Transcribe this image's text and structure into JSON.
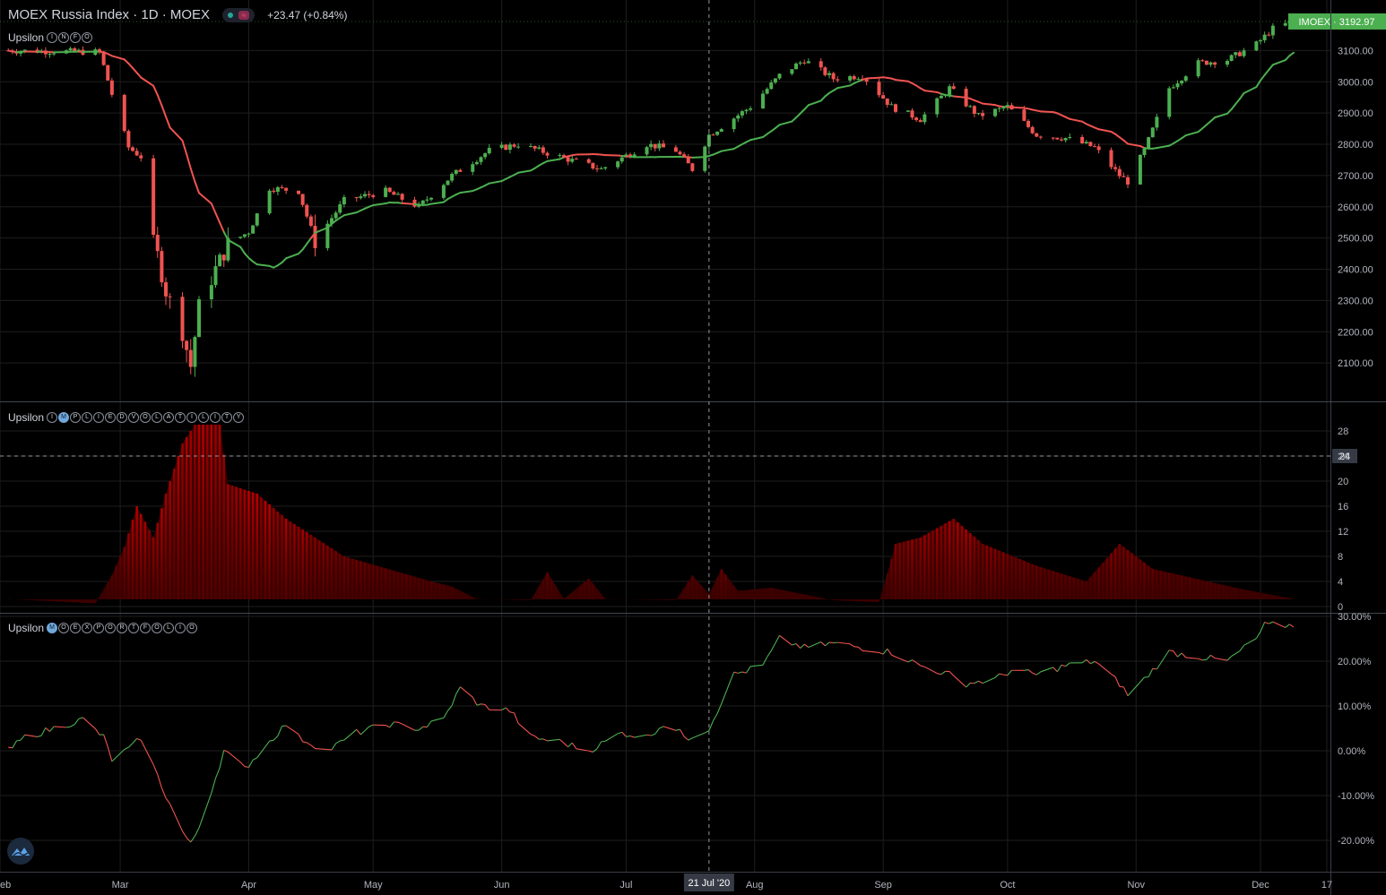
{
  "header": {
    "title": "MOEX Russia Index · 1D · MOEX",
    "change": "+23.47 (+0.84%)",
    "price_label": "IMOEX · 3192.97"
  },
  "indicators": [
    {
      "name": "Upsilon",
      "letters": [
        "I",
        "N",
        "F",
        "O"
      ],
      "highlight": []
    },
    {
      "name": "Upsilon",
      "letters": [
        "I",
        "M",
        "P",
        "L",
        "I",
        "E",
        "D",
        "V",
        "O",
        "L",
        "A",
        "T",
        "I",
        "L",
        "I",
        "T",
        "Y"
      ],
      "highlight": [
        1
      ]
    },
    {
      "name": "Upsilon",
      "letters": [
        "M",
        "O",
        "E",
        "X",
        "P",
        "O",
        "R",
        "T",
        "F",
        "O",
        "L",
        "I",
        "O"
      ],
      "highlight": [
        0
      ]
    }
  ],
  "crosshair": {
    "date_label": "21 Jul '20",
    "vol_value_label": "24"
  },
  "x_axis": {
    "labels": [
      "eb",
      "Mar",
      "Apr",
      "May",
      "Jun",
      "Jul",
      "Aug",
      "Sep",
      "Oct",
      "Nov",
      "Dec",
      "17"
    ]
  },
  "colors": {
    "up": "#4caf50",
    "down": "#ef5350",
    "bg": "#000000",
    "grid": "#1e1e1e",
    "price_label_bg": "#4caf50",
    "vol": "#c40000"
  },
  "chart_data": [
    {
      "type": "candlestick",
      "title": "MOEX Russia Index",
      "y_ticks": [
        "2100.00",
        "2200.00",
        "2300.00",
        "2400.00",
        "2500.00",
        "2600.00",
        "2700.00",
        "2800.00",
        "2900.00",
        "3000.00",
        "3100.00"
      ],
      "ylim": [
        2000,
        3190
      ],
      "overlay": "moving average (red below-trend, green above-trend)",
      "anchors": [
        [
          "2020-02-03",
          3100
        ],
        [
          "2020-02-25",
          3095
        ],
        [
          "2020-02-28",
          2960
        ],
        [
          "2020-03-03",
          2790
        ],
        [
          "2020-03-06",
          2760
        ],
        [
          "2020-03-09",
          2500
        ],
        [
          "2020-03-12",
          2330
        ],
        [
          "2020-03-16",
          2200
        ],
        [
          "2020-03-18",
          2090
        ],
        [
          "2020-03-20",
          2280
        ],
        [
          "2020-03-24",
          2400
        ],
        [
          "2020-03-27",
          2480
        ],
        [
          "2020-04-01",
          2520
        ],
        [
          "2020-04-06",
          2660
        ],
        [
          "2020-04-13",
          2650
        ],
        [
          "2020-04-17",
          2490
        ],
        [
          "2020-04-24",
          2620
        ],
        [
          "2020-05-04",
          2650
        ],
        [
          "2020-05-12",
          2600
        ],
        [
          "2020-05-20",
          2700
        ],
        [
          "2020-05-29",
          2780
        ],
        [
          "2020-06-05",
          2800
        ],
        [
          "2020-06-15",
          2760
        ],
        [
          "2020-06-25",
          2720
        ],
        [
          "2020-07-06",
          2800
        ],
        [
          "2020-07-13",
          2780
        ],
        [
          "2020-07-17",
          2720
        ],
        [
          "2020-07-21",
          2830
        ],
        [
          "2020-07-31",
          2920
        ],
        [
          "2020-08-07",
          3020
        ],
        [
          "2020-08-13",
          3070
        ],
        [
          "2020-08-20",
          3010
        ],
        [
          "2020-08-27",
          3020
        ],
        [
          "2020-09-03",
          2920
        ],
        [
          "2020-09-10",
          2880
        ],
        [
          "2020-09-17",
          2980
        ],
        [
          "2020-09-24",
          2890
        ],
        [
          "2020-10-01",
          2920
        ],
        [
          "2020-10-08",
          2830
        ],
        [
          "2020-10-15",
          2820
        ],
        [
          "2020-10-22",
          2790
        ],
        [
          "2020-10-28",
          2700
        ],
        [
          "2020-10-30",
          2680
        ],
        [
          "2020-11-03",
          2780
        ],
        [
          "2020-11-09",
          2980
        ],
        [
          "2020-11-16",
          3060
        ],
        [
          "2020-11-23",
          3070
        ],
        [
          "2020-11-30",
          3120
        ],
        [
          "2020-12-04",
          3170
        ],
        [
          "2020-12-09",
          3192.97
        ]
      ],
      "last": 3192.97
    },
    {
      "type": "area",
      "title": "Implied Volatility",
      "y_ticks": [
        "0",
        "4",
        "8",
        "12",
        "16",
        "20",
        "24",
        "28"
      ],
      "ylim": [
        0,
        29
      ],
      "points": [
        [
          "2020-02-03",
          1.2
        ],
        [
          "2020-02-24",
          0.5
        ],
        [
          "2020-02-28",
          5
        ],
        [
          "2020-03-02",
          9.5
        ],
        [
          "2020-03-05",
          16
        ],
        [
          "2020-03-09",
          11
        ],
        [
          "2020-03-12",
          18
        ],
        [
          "2020-03-16",
          26
        ],
        [
          "2020-03-19",
          29
        ],
        [
          "2020-03-25",
          29
        ],
        [
          "2020-03-27",
          19.5
        ],
        [
          "2020-04-03",
          18
        ],
        [
          "2020-04-10",
          14
        ],
        [
          "2020-04-24",
          8
        ],
        [
          "2020-05-15",
          4
        ],
        [
          "2020-05-20",
          3.2
        ],
        [
          "2020-05-26",
          1.2
        ],
        [
          "2020-06-08",
          1
        ],
        [
          "2020-06-12",
          5.5
        ],
        [
          "2020-06-16",
          1.2
        ],
        [
          "2020-06-22",
          4.5
        ],
        [
          "2020-06-26",
          1.2
        ],
        [
          "2020-07-13",
          1
        ],
        [
          "2020-07-17",
          5
        ],
        [
          "2020-07-21",
          2
        ],
        [
          "2020-07-24",
          6
        ],
        [
          "2020-07-28",
          2.5
        ],
        [
          "2020-08-05",
          3
        ],
        [
          "2020-08-20",
          1
        ],
        [
          "2020-08-31",
          0.7
        ],
        [
          "2020-09-04",
          10
        ],
        [
          "2020-09-10",
          11
        ],
        [
          "2020-09-18",
          14
        ],
        [
          "2020-09-25",
          10
        ],
        [
          "2020-10-08",
          6.5
        ],
        [
          "2020-10-20",
          4
        ],
        [
          "2020-10-28",
          10
        ],
        [
          "2020-11-05",
          6
        ],
        [
          "2020-11-25",
          3
        ],
        [
          "2020-12-09",
          1.2
        ]
      ]
    },
    {
      "type": "line",
      "title": "MOEX Portfolio",
      "y_ticks": [
        "-20.00%",
        "-10.00%",
        "0.00%",
        "10.00%",
        "20.00%",
        "30.00%"
      ],
      "ylim": [
        -23,
        30
      ],
      "points": [
        [
          "2020-02-03",
          0
        ],
        [
          "2020-02-07",
          3
        ],
        [
          "2020-02-14",
          5
        ],
        [
          "2020-02-21",
          7
        ],
        [
          "2020-02-26",
          3
        ],
        [
          "2020-02-28",
          -2
        ],
        [
          "2020-03-04",
          1
        ],
        [
          "2020-03-06",
          3
        ],
        [
          "2020-03-12",
          -10
        ],
        [
          "2020-03-16",
          -18
        ],
        [
          "2020-03-18",
          -21
        ],
        [
          "2020-03-20",
          -17
        ],
        [
          "2020-03-24",
          -6
        ],
        [
          "2020-03-26",
          0
        ],
        [
          "2020-03-31",
          -4
        ],
        [
          "2020-04-06",
          2
        ],
        [
          "2020-04-10",
          6
        ],
        [
          "2020-04-13",
          3
        ],
        [
          "2020-04-20",
          0
        ],
        [
          "2020-04-27",
          4
        ],
        [
          "2020-05-05",
          6
        ],
        [
          "2020-05-12",
          5
        ],
        [
          "2020-05-18",
          7
        ],
        [
          "2020-05-22",
          14
        ],
        [
          "2020-05-27",
          10
        ],
        [
          "2020-06-03",
          9
        ],
        [
          "2020-06-08",
          3
        ],
        [
          "2020-06-15",
          2
        ],
        [
          "2020-06-22",
          0
        ],
        [
          "2020-06-30",
          4
        ],
        [
          "2020-07-06",
          3
        ],
        [
          "2020-07-10",
          6
        ],
        [
          "2020-07-16",
          3
        ],
        [
          "2020-07-21",
          5
        ],
        [
          "2020-07-27",
          17
        ],
        [
          "2020-08-03",
          19
        ],
        [
          "2020-08-07",
          25
        ],
        [
          "2020-08-13",
          23
        ],
        [
          "2020-08-20",
          24
        ],
        [
          "2020-08-27",
          23
        ],
        [
          "2020-09-03",
          22
        ],
        [
          "2020-09-10",
          19
        ],
        [
          "2020-09-17",
          17
        ],
        [
          "2020-09-21",
          15
        ],
        [
          "2020-09-28",
          16
        ],
        [
          "2020-10-02",
          18
        ],
        [
          "2020-10-08",
          17
        ],
        [
          "2020-10-15",
          19
        ],
        [
          "2020-10-22",
          20
        ],
        [
          "2020-10-28",
          15
        ],
        [
          "2020-10-30",
          12.5
        ],
        [
          "2020-11-03",
          16
        ],
        [
          "2020-11-09",
          22
        ],
        [
          "2020-11-16",
          21
        ],
        [
          "2020-11-23",
          20
        ],
        [
          "2020-11-30",
          25
        ],
        [
          "2020-12-02",
          28
        ],
        [
          "2020-12-09",
          28
        ]
      ]
    }
  ]
}
